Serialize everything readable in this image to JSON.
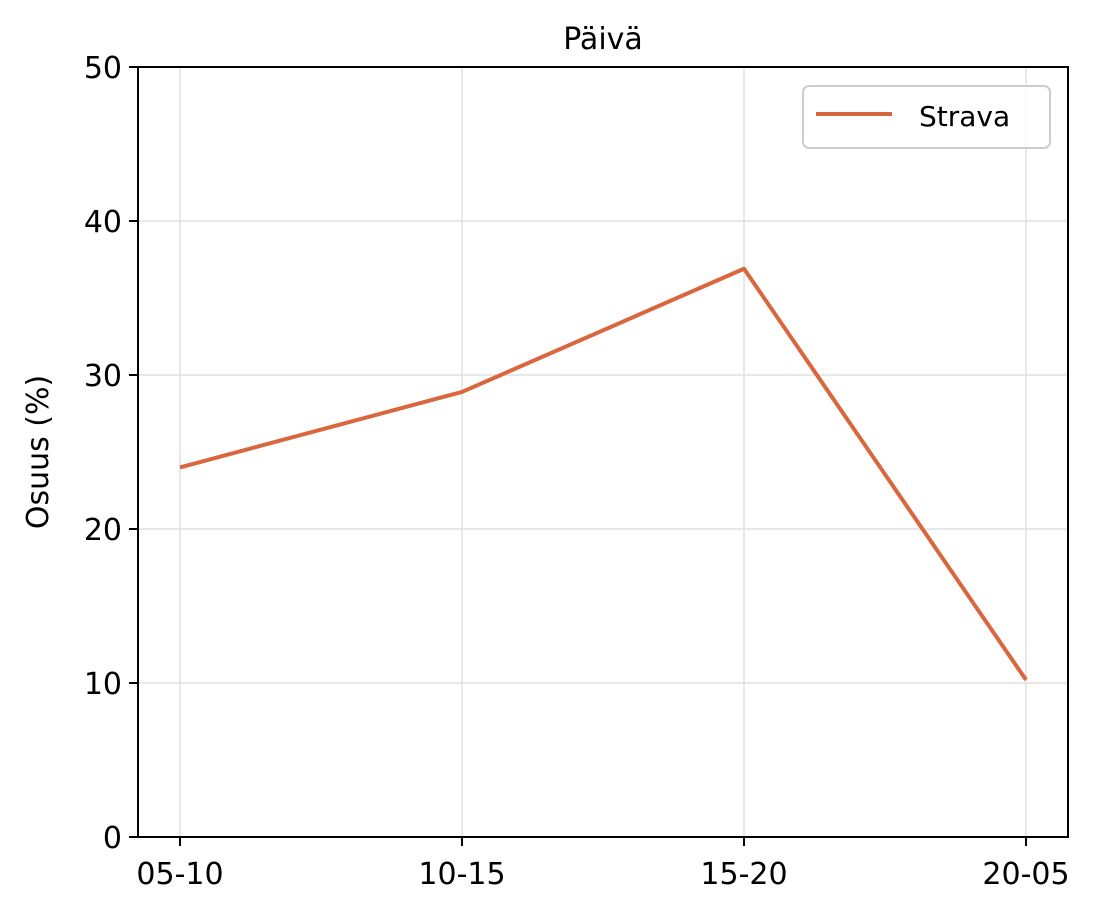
{
  "chart_data": {
    "type": "line",
    "title": "Päivä",
    "xlabel": "",
    "ylabel": "Osuus (%)",
    "categories": [
      "05-10",
      "10-15",
      "15-20",
      "20-05"
    ],
    "series": [
      {
        "name": "Strava",
        "values": [
          24.0,
          28.9,
          36.9,
          10.2
        ],
        "color": "#D9663D"
      }
    ],
    "ylim": [
      0,
      50
    ],
    "yticks": [
      0,
      10,
      20,
      30,
      40,
      50
    ],
    "grid": true,
    "legend_position": "top-right"
  }
}
